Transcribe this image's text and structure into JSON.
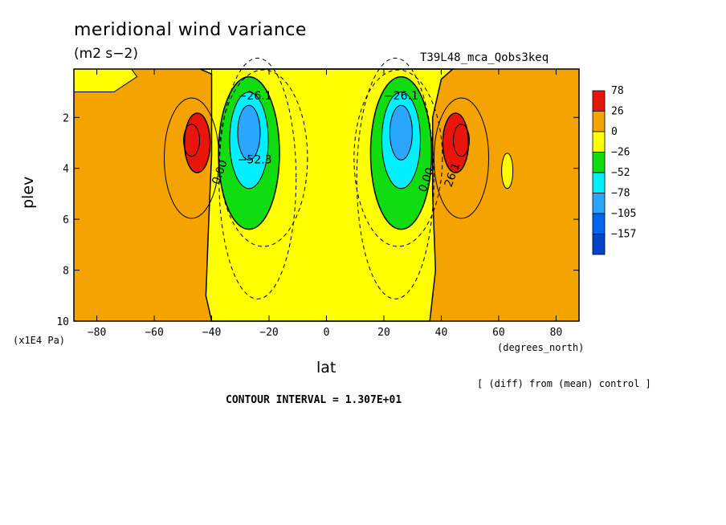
{
  "chart_data": {
    "type": "heatmap",
    "title": "meridional wind variance",
    "subtitle": "(m2 s−2)",
    "run_id": "T39L48_mca_Qobs3keq",
    "xlabel": "lat",
    "x_units": "(degrees_north)",
    "ylabel": "plev",
    "y_units": "(x1E4 Pa)",
    "xlim": [
      -88,
      88
    ],
    "ylim": [
      10,
      0.1
    ],
    "x_ticks": [
      -80,
      -60,
      -40,
      -20,
      0,
      20,
      40,
      60,
      80
    ],
    "y_ticks": [
      2,
      4,
      6,
      8,
      10
    ],
    "colorbar": {
      "levels": [
        "78",
        "26",
        "0",
        "−26",
        "−52",
        "−78",
        "−105",
        "−157"
      ],
      "colors": [
        "#e8160a",
        "#f5a300",
        "#ffff00",
        "#10dd10",
        "#00f0ff",
        "#2aa6ff",
        "#0066ee",
        "#0044cc"
      ]
    },
    "contour_labels": [
      {
        "text": "−26.1",
        "lat": -25,
        "plev": 1.3
      },
      {
        "text": "−52.3",
        "lat": -25,
        "plev": 3.8
      },
      {
        "text": "0.00",
        "lat": -36,
        "plev": 4.2
      },
      {
        "text": "−26.1",
        "lat": 26,
        "plev": 1.3
      },
      {
        "text": "0.00",
        "lat": 36,
        "plev": 4.5
      },
      {
        "text": "26.1",
        "lat": 45,
        "plev": 4.3
      }
    ],
    "grid": false,
    "legend": "right"
  },
  "note": "[ (diff) from (mean) control ]",
  "contour_interval": "CONTOUR INTERVAL = 1.307E+01"
}
